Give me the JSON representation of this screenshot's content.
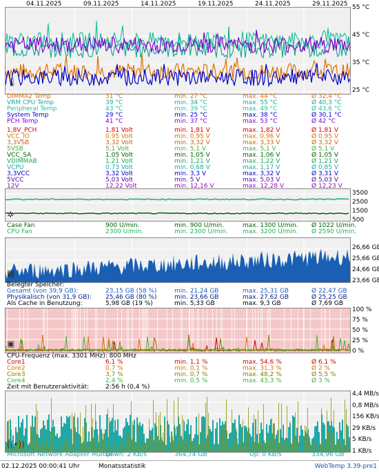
{
  "dates": [
    "04.11.2025",
    "09.11.2025",
    "14.11.2025",
    "19.11.2025",
    "24.11.2025",
    "29.11.2025"
  ],
  "temp_axis": [
    "55 °C",
    "45 °C",
    "35 °C",
    "25 °C"
  ],
  "temps": [
    {
      "name": "DIMMA2 Temp",
      "cur": "31 °C",
      "min": "min. 27 °C",
      "max": "max. 44 °C",
      "avg": "Ø 32,4 °C",
      "color": "#e07000"
    },
    {
      "name": "VRM CPU Temp",
      "cur": "39 °C",
      "min": "min. 34 °C",
      "max": "max. 55 °C",
      "avg": "Ø 40,3 °C",
      "color": "#18a898"
    },
    {
      "name": "Peripheral Temp",
      "cur": "43 °C",
      "min": "min. 39 °C",
      "max": "max. 49 °C",
      "avg": "Ø 43,6 °C",
      "color": "#20c0a0"
    },
    {
      "name": "System Temp",
      "cur": "29 °C",
      "min": "min. 25 °C",
      "max": "max. 38 °C",
      "avg": "Ø 30,1 °C",
      "color": "#0000c8"
    },
    {
      "name": "PCH Temp",
      "cur": "41 °C",
      "min": "min. 37 °C",
      "max": "max. 53 °C",
      "avg": "Ø 42 °C",
      "color": "#8000d0"
    }
  ],
  "volts": [
    {
      "name": "1,8V_PCH",
      "cur": "1,81 Volt",
      "min": "min. 1,81 V",
      "max": "max. 1,82 V",
      "avg": "Ø 1,81 V",
      "color": "#d00000"
    },
    {
      "name": "VCC_IO",
      "cur": "0,95 Volt",
      "min": "min. 0,95 V",
      "max": "max. 0,96 V",
      "avg": "Ø 0,95 V",
      "color": "#e07000"
    },
    {
      "name": "3,3VSB",
      "cur": "3,32 Volt",
      "min": "min. 3,32 V",
      "max": "max. 3,33 V",
      "avg": "Ø 3,32 V",
      "color": "#d06000"
    },
    {
      "name": "5VSB",
      "cur": "5,1 Volt",
      "min": "min. 5,1 V",
      "max": "max. 5,1 V",
      "avg": "Ø 5,1 V",
      "color": "#40b040"
    },
    {
      "name": "VCC_SA",
      "cur": "1,05 Volt",
      "min": "min. 1,05 V",
      "max": "max. 1,06 V",
      "avg": "Ø 1,05 V",
      "color": "#006000"
    },
    {
      "name": "VDIMMAB",
      "cur": "1,21 Volt",
      "min": "min. 1,21 V",
      "max": "max. 1,22 V",
      "avg": "Ø 1,21 V",
      "color": "#20a060"
    },
    {
      "name": "VCPU",
      "cur": "0,73 Volt",
      "min": "min. 0,68 V",
      "max": "max. 1,17 V",
      "avg": "Ø 0,85 V",
      "color": "#18a8a8"
    },
    {
      "name": "3,3VCC",
      "cur": "3,32 Volt",
      "min": "min. 3,3 V",
      "max": "max. 3,32 V",
      "avg": "Ø 3,31 V",
      "color": "#0000c0"
    },
    {
      "name": "5VCC",
      "cur": "5,03 Volt",
      "min": "min. 5 V",
      "max": "max. 5,03 V",
      "avg": "Ø 5,03 V",
      "color": "#5000b0"
    },
    {
      "name": "12V",
      "cur": "12,22 Volt",
      "min": "min. 12,16 V",
      "max": "max. 12,28 V",
      "avg": "Ø 12,23 V",
      "color": "#a000c0"
    }
  ],
  "fan_axis": [
    "3500",
    "2500",
    "1500",
    "500"
  ],
  "fans": [
    {
      "name": "Case Fan",
      "cur": "900 U/min.",
      "min": "min. 900 U/min.",
      "max": "max. 1300 U/min.",
      "avg": "Ø 1022 U/min.",
      "color": "#006000"
    },
    {
      "name": "CPU Fan",
      "cur": "2300 U/min.",
      "min": "min. 2300 U/min.",
      "max": "max. 3200 U/min.",
      "avg": "Ø 2590 U/min.",
      "color": "#20b060"
    }
  ],
  "mem_axis": [
    "26,66 GB",
    "25,66 GB",
    "24,66 GB",
    "23,66 GB"
  ],
  "mem_header": "Belegter Speicher:",
  "mem": [
    {
      "name": "Gesamt (von 39,9 GB):",
      "cur": "23,15 GB (58 %)",
      "min": "min. 21,24 GB",
      "max": "max. 25,31 GB",
      "avg": "Ø 22,47 GB",
      "color": "#2060c0"
    },
    {
      "name": "Physikalisch (von 31,9 GB):",
      "cur": "25,46 GB (80 %)",
      "min": "min. 23,66 GB",
      "max": "max. 27,62 GB",
      "avg": "Ø 25,25 GB",
      "color": "#002080"
    },
    {
      "name": "Als Cache in Benutzung:",
      "cur": "5,98 GB (19 %)",
      "min": "min. 5,33 GB",
      "max": "max. 9,3 GB",
      "avg": "Ø 7,69 GB",
      "color": "#000000"
    }
  ],
  "cpu_axis": [
    "100 %",
    "75 %",
    "50 %",
    "25 %",
    "0 %"
  ],
  "cpu_header": "CPU-Frequenz (max. 3301 MHz): 800 MHz",
  "cores": [
    {
      "name": "Core1",
      "cur": "6,1 %",
      "min": "min. 1,1 %",
      "max": "max. 54,6 %",
      "avg": "Ø 6,1 %",
      "color": "#d00000"
    },
    {
      "name": "Core2",
      "cur": "0,7 %",
      "min": "min. 0,1 %",
      "max": "max. 31,3 %",
      "avg": "Ø 2 %",
      "color": "#e07000"
    },
    {
      "name": "Core3",
      "cur": "3,7 %",
      "min": "min. 0,7 %",
      "max": "max. 48,2 %",
      "avg": "Ø 5,5 %",
      "color": "#808000"
    },
    {
      "name": "Core4",
      "cur": "2,4 %",
      "min": "min. 0,5 %",
      "max": "max. 43,3 %",
      "avg": "Ø 3 %",
      "color": "#40b040"
    }
  ],
  "user_activity": {
    "label": "Zeit mit Benutzeraktivität:",
    "value": "2:56 h (0,4 %)"
  },
  "net_axis": [
    "4,4 MB/s",
    "0,8 MB/s",
    "156 KB/s",
    "29 KB/s",
    "5 KB/s",
    "1 KB/s"
  ],
  "net": {
    "name": "Microsoft Network Adapter Multipl",
    "down": "Down: 2 KB/s",
    "down_total": "364,74 GB",
    "up": "Up: 0 KB/s",
    "up_total": "334,96 GB"
  },
  "footer": {
    "datetime": "02.12.2025 00:00:41 Uhr",
    "label": "Monatsstatistik",
    "version": "WebTemp 3.39-pre1"
  },
  "colors": {
    "graph_bg": "#f0f0f0",
    "cpu_bg": "#f4c8c8",
    "mem_fill": "#1a5fb4",
    "net_fill1": "#20a8a8",
    "net_fill2": "#909000",
    "grid": "#ffffff"
  }
}
